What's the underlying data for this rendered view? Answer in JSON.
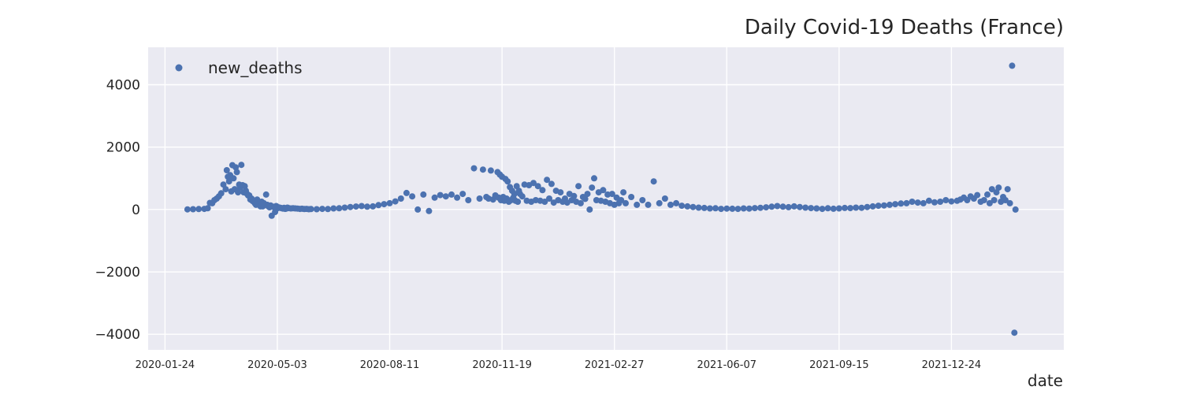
{
  "chart_data": {
    "type": "scatter",
    "title": "Daily Covid-19 Deaths (France)",
    "xlabel": "date",
    "ylabel": "",
    "legend": {
      "position": "top-left",
      "entries": [
        "new_deaths"
      ]
    },
    "grid": true,
    "ylim": [
      -4500,
      5200
    ],
    "yticks": [
      4000,
      2000,
      0,
      -2000,
      -4000
    ],
    "ytick_labels": [
      "4000",
      "2000",
      "0",
      "−2000",
      "−4000"
    ],
    "xtick_labels": [
      "2020-01-24",
      "2020-05-03",
      "2020-08-11",
      "2020-11-19",
      "2021-02-27",
      "2021-06-07",
      "2021-09-15",
      "2021-12-24"
    ],
    "xlim_days": [
      -15,
      800
    ],
    "x_origin": "2020-01-24",
    "colors": {
      "marker": "#4c72b0",
      "axes_bg": "#eaeaf2",
      "grid": "#ffffff",
      "text": "#262626"
    },
    "series": [
      {
        "name": "new_deaths",
        "x": [
          20,
          25,
          30,
          35,
          38,
          40,
          42,
          44,
          46,
          48,
          50,
          52,
          54,
          55,
          56,
          57,
          58,
          59,
          60,
          61,
          62,
          63,
          64,
          65,
          66,
          67,
          68,
          69,
          70,
          71,
          72,
          73,
          74,
          75,
          76,
          77,
          78,
          79,
          80,
          81,
          82,
          83,
          84,
          85,
          86,
          87,
          88,
          89,
          90,
          91,
          92,
          93,
          94,
          95,
          96,
          97,
          98,
          99,
          100,
          101,
          102,
          103,
          104,
          105,
          106,
          107,
          108,
          109,
          110,
          112,
          114,
          116,
          118,
          120,
          122,
          124,
          126,
          128,
          130,
          135,
          140,
          145,
          150,
          155,
          160,
          165,
          170,
          175,
          180,
          185,
          190,
          195,
          200,
          205,
          210,
          215,
          220,
          225,
          230,
          235,
          240,
          245,
          250,
          255,
          260,
          265,
          270,
          275,
          280,
          283,
          286,
          288,
          290,
          292,
          294,
          296,
          297,
          298,
          299,
          300,
          301,
          302,
          303,
          304,
          305,
          306,
          307,
          308,
          309,
          310,
          311,
          312,
          313,
          314,
          315,
          316,
          318,
          320,
          322,
          324,
          326,
          328,
          330,
          332,
          334,
          336,
          338,
          340,
          342,
          344,
          346,
          348,
          350,
          352,
          354,
          356,
          358,
          360,
          362,
          364,
          366,
          368,
          370,
          372,
          374,
          376,
          378,
          380,
          382,
          384,
          386,
          388,
          390,
          392,
          394,
          396,
          398,
          400,
          402,
          404,
          406,
          408,
          410,
          415,
          420,
          425,
          430,
          435,
          440,
          445,
          450,
          455,
          460,
          465,
          470,
          475,
          480,
          485,
          490,
          495,
          500,
          505,
          510,
          515,
          520,
          525,
          530,
          535,
          540,
          545,
          550,
          555,
          560,
          565,
          570,
          575,
          580,
          585,
          590,
          595,
          600,
          605,
          610,
          615,
          620,
          625,
          630,
          635,
          640,
          645,
          650,
          655,
          660,
          665,
          670,
          675,
          680,
          685,
          690,
          695,
          700,
          705,
          708,
          711,
          714,
          717,
          720,
          723,
          726,
          729,
          732,
          734,
          736,
          738,
          740,
          742,
          744,
          746,
          748,
          750,
          752,
          754,
          756,
          757
        ],
        "y": [
          5,
          10,
          15,
          20,
          40,
          210,
          200,
          300,
          350,
          420,
          520,
          800,
          650,
          1260,
          1050,
          900,
          1100,
          580,
          1420,
          1000,
          650,
          1350,
          1200,
          550,
          800,
          700,
          1430,
          780,
          550,
          750,
          600,
          500,
          450,
          450,
          320,
          350,
          270,
          280,
          200,
          150,
          320,
          200,
          180,
          100,
          250,
          100,
          200,
          150,
          480,
          150,
          100,
          70,
          130,
          -200,
          90,
          80,
          -80,
          110,
          40,
          70,
          60,
          50,
          40,
          30,
          55,
          20,
          30,
          60,
          45,
          35,
          40,
          35,
          30,
          20,
          25,
          15,
          20,
          10,
          15,
          10,
          20,
          15,
          35,
          40,
          60,
          80,
          95,
          110,
          90,
          100,
          140,
          170,
          200,
          260,
          350,
          530,
          420,
          0,
          480,
          -50,
          380,
          460,
          420,
          480,
          380,
          500,
          300,
          1320,
          350,
          1280,
          400,
          350,
          1250,
          320,
          450,
          1200,
          380,
          1120,
          300,
          1050,
          400,
          280,
          980,
          350,
          900,
          250,
          720,
          300,
          600,
          380,
          500,
          280,
          750,
          250,
          600,
          500,
          420,
          800,
          280,
          780,
          250,
          850,
          300,
          750,
          280,
          620,
          250,
          950,
          350,
          820,
          220,
          600,
          300,
          550,
          250,
          350,
          220,
          500,
          300,
          430,
          250,
          750,
          200,
          400,
          340,
          500,
          0,
          700,
          1000,
          300,
          550,
          280,
          620,
          250,
          480,
          200,
          500,
          150,
          380,
          200,
          300,
          550,
          200,
          400,
          150,
          300,
          150,
          900,
          200,
          350,
          150,
          200,
          120,
          100,
          80,
          60,
          50,
          35,
          40,
          20,
          30,
          25,
          20,
          35,
          30,
          45,
          55,
          70,
          90,
          110,
          90,
          75,
          100,
          80,
          60,
          45,
          35,
          20,
          40,
          25,
          35,
          50,
          45,
          60,
          55,
          80,
          100,
          120,
          130,
          150,
          170,
          190,
          200,
          250,
          220,
          200,
          280,
          230,
          250,
          300,
          260,
          280,
          320,
          380,
          300,
          420,
          350,
          460,
          250,
          300,
          480,
          200,
          650,
          300,
          550,
          700,
          250,
          400,
          300,
          650,
          200,
          4610,
          -3950,
          0
        ]
      }
    ]
  }
}
